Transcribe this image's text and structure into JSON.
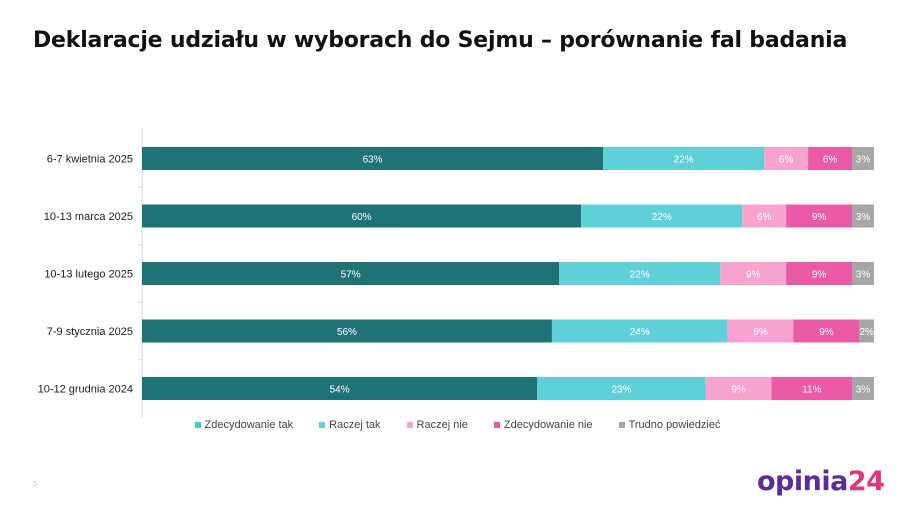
{
  "page": {
    "title": "Deklaracje udziału w wyborach do Sejmu – porównanie fal badania",
    "page_number": "5",
    "logo_main": "opinia",
    "logo_suffix": "24"
  },
  "chart_data": {
    "type": "bar",
    "orientation": "horizontal",
    "stacked": true,
    "percent_scale": true,
    "categories": [
      "6-7 kwietnia 2025",
      "10-13 marca 2025",
      "10-13 lutego 2025",
      "7-9 stycznia 2025",
      "10-12 grudnia 2024"
    ],
    "series": [
      {
        "name": "Zdecydowanie tak",
        "color": "#1f7377",
        "legend_color": "#45c7d3",
        "values": [
          63,
          60,
          57,
          56,
          54
        ]
      },
      {
        "name": "Raczej tak",
        "color": "#5fd0d8",
        "legend_color": "#5fd0d8",
        "values": [
          22,
          22,
          22,
          24,
          23
        ]
      },
      {
        "name": "Raczej nie",
        "color": "#f7a3cf",
        "legend_color": "#f7a3cf",
        "values": [
          6,
          6,
          9,
          9,
          9
        ]
      },
      {
        "name": "Zdecydowanie nie",
        "color": "#ea5aa6",
        "legend_color": "#ea5aa6",
        "values": [
          6,
          9,
          9,
          9,
          11
        ]
      },
      {
        "name": "Trudno powiedzieć",
        "color": "#a6a6a6",
        "legend_color": "#a6a6a6",
        "values": [
          3,
          3,
          3,
          2,
          3
        ]
      }
    ],
    "value_suffix": "%",
    "legend_position": "bottom",
    "grid": false,
    "xlabel": "",
    "ylabel": ""
  }
}
